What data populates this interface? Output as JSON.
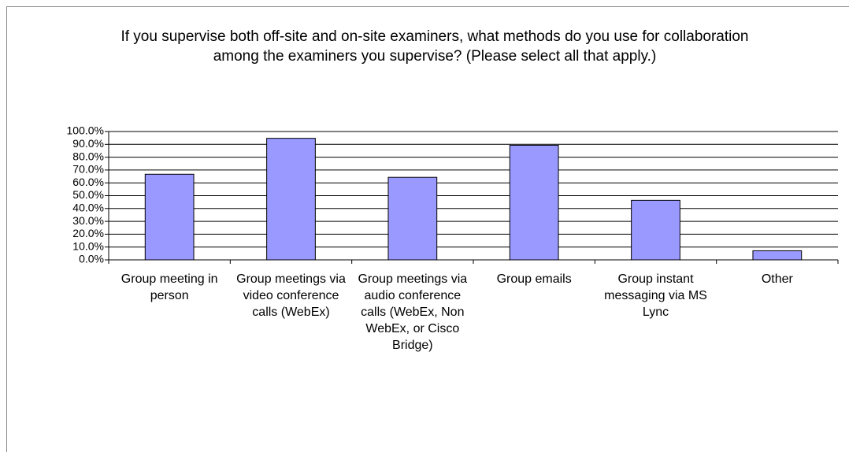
{
  "chart_data": {
    "type": "bar",
    "title": "If you supervise both off-site and on-site examiners, what methods do you use for collaboration among the examiners you supervise? (Please select all that apply.)",
    "categories": [
      "Group meeting in person",
      "Group meetings via video conference calls (WebEx)",
      "Group meetings via audio conference calls (WebEx, Non WebEx, or Cisco Bridge)",
      "Group emails",
      "Group instant messaging via MS Lync",
      "Other"
    ],
    "values": [
      66.7,
      94.7,
      64.3,
      89.3,
      46.4,
      7.1
    ],
    "color": "#9999ff",
    "ylim": [
      0,
      100
    ],
    "yticks": [
      {
        "value": 0,
        "label": "0.0%"
      },
      {
        "value": 10,
        "label": "10.0%"
      },
      {
        "value": 20,
        "label": "20.0%"
      },
      {
        "value": 30,
        "label": "30.0%"
      },
      {
        "value": 40,
        "label": "40.0%"
      },
      {
        "value": 50,
        "label": "50.0%"
      },
      {
        "value": 60,
        "label": "60.0%"
      },
      {
        "value": 70,
        "label": "70.0%"
      },
      {
        "value": 80,
        "label": "80.0%"
      },
      {
        "value": 90,
        "label": "90.0%"
      },
      {
        "value": 100,
        "label": "100.0%"
      }
    ],
    "grid": true
  }
}
